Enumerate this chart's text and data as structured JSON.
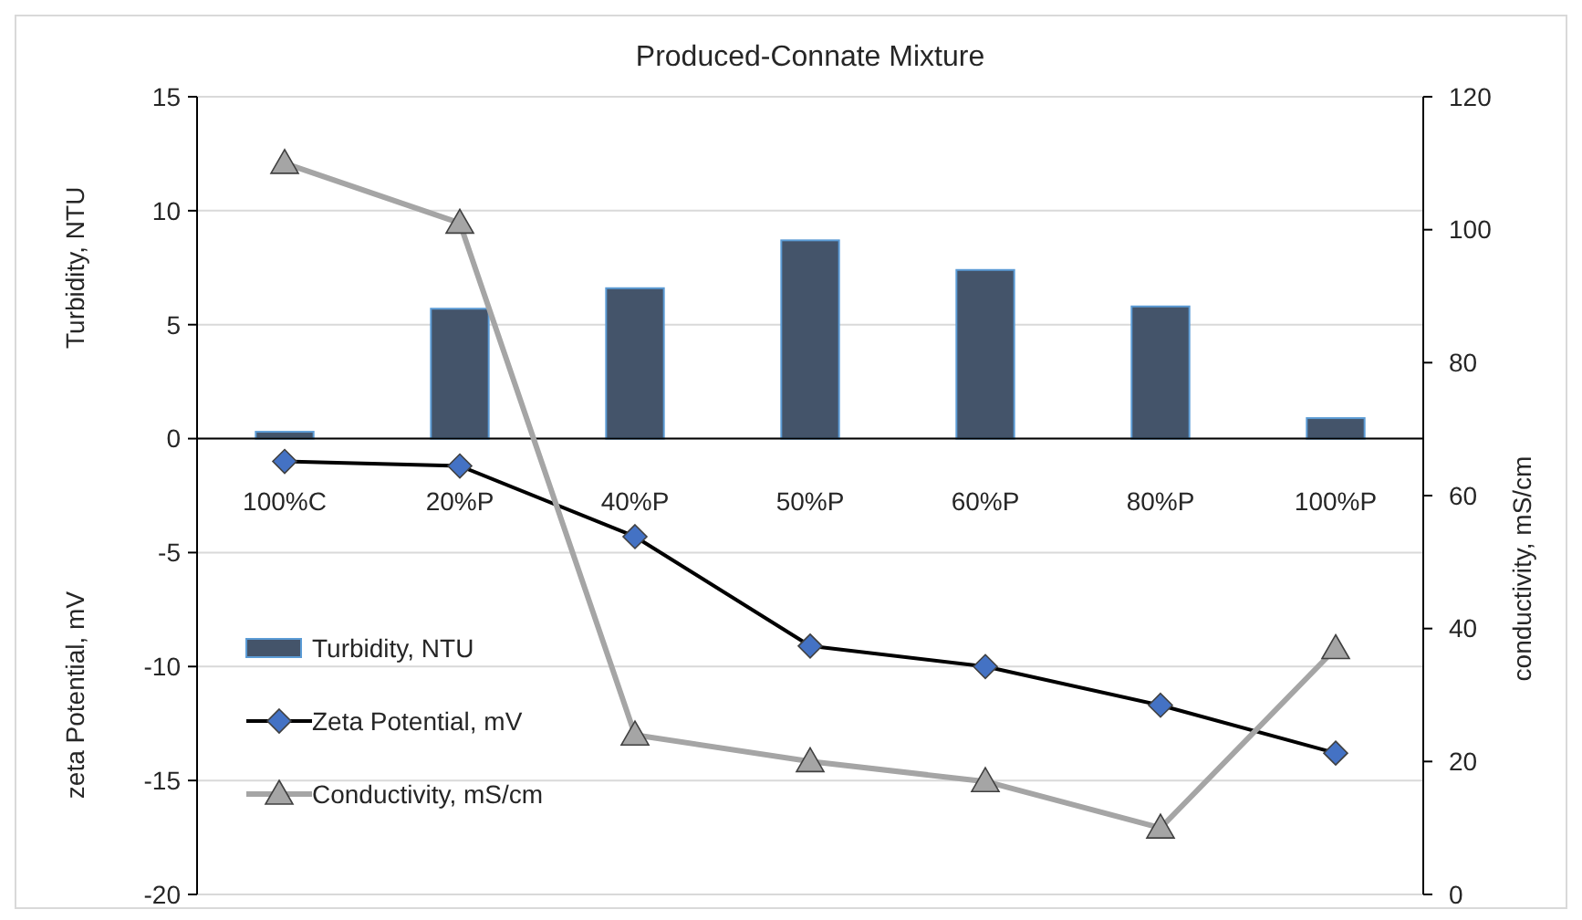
{
  "chart_data": {
    "type": "bar",
    "title": "Produced-Connate Mixture",
    "ylabel": "zeta Potential, mV",
    "y2label": "conductivity, mS/cm",
    "annotations": [
      "Turbidity, NTU"
    ],
    "categories": [
      "100%C",
      "20%P",
      "40%P",
      "50%P",
      "60%P",
      "80%P",
      "100%P"
    ],
    "series": [
      {
        "name": "Turbidity, NTU",
        "color": "#44546a",
        "values": [
          0.3,
          5.7,
          6.6,
          8.7,
          7.4,
          5.8,
          0.9
        ]
      },
      {
        "name": "Zeta Potential, mV",
        "type": "line",
        "color": "#4472c4",
        "marker": "diamond",
        "values": [
          -1.0,
          -1.2,
          -4.3,
          -9.1,
          -10.0,
          -11.7,
          -13.8
        ]
      },
      {
        "name": "Conductivity, mS/cm",
        "type": "line",
        "axis": "y2",
        "color": "#a5a5a5",
        "marker": "triangle",
        "values": [
          110,
          101,
          24,
          20,
          17,
          10,
          37
        ]
      }
    ],
    "ylim": [
      -20,
      15
    ],
    "yticks": [
      -20,
      -15,
      -10,
      -5,
      0,
      5,
      10,
      15
    ],
    "y2lim": [
      0,
      120
    ],
    "y2ticks": [
      0,
      20,
      40,
      60,
      80,
      100,
      120
    ],
    "grid": "y",
    "legend": "bottom left"
  }
}
